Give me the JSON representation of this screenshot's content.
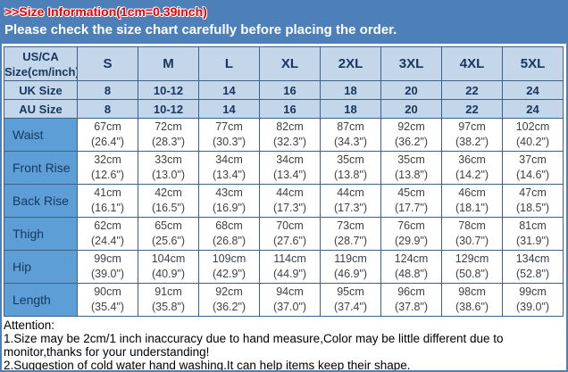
{
  "colors": {
    "banner_blue": "#4d80b9",
    "header_light_blue": "#c3d6ea",
    "row_label_blue": "#5e9ed6",
    "border_blue": "#3e6287",
    "title_red": "#e90000",
    "navy_text": "#17365d",
    "cell_text": "#404040"
  },
  "banner": {
    "info": ">>Size Information(1cm=0.39inch)",
    "notice": "Please check the size chart carefully before placing the order."
  },
  "table": {
    "corner": {
      "line1": "US/CA",
      "line2": "Size(cm/inch)"
    },
    "size_columns": [
      "S",
      "M",
      "L",
      "XL",
      "2XL",
      "3XL",
      "4XL",
      "5XL"
    ],
    "uk_row": {
      "label": "UK Size",
      "values": [
        "8",
        "10-12",
        "14",
        "16",
        "18",
        "20",
        "22",
        "24"
      ]
    },
    "au_row": {
      "label": "AU Size",
      "values": [
        "8",
        "10-12",
        "14",
        "16",
        "18",
        "20",
        "22",
        "24"
      ]
    },
    "body_rows": [
      {
        "label": "Waist",
        "values": [
          {
            "cm": "67cm",
            "inch": "(26.4\")"
          },
          {
            "cm": "72cm",
            "inch": "(28.3\")"
          },
          {
            "cm": "77cm",
            "inch": "(30.3\")"
          },
          {
            "cm": "82cm",
            "inch": "(32.3\")"
          },
          {
            "cm": "87cm",
            "inch": "(34.3\")"
          },
          {
            "cm": "92cm",
            "inch": "(36.2\")"
          },
          {
            "cm": "97cm",
            "inch": "(38.2\")"
          },
          {
            "cm": "102cm",
            "inch": "(40.2\")"
          }
        ]
      },
      {
        "label": "Front Rise",
        "values": [
          {
            "cm": "32cm",
            "inch": "(12.6\")"
          },
          {
            "cm": "33cm",
            "inch": "(13.0\")"
          },
          {
            "cm": "34cm",
            "inch": "(13.4\")"
          },
          {
            "cm": "34cm",
            "inch": "(13.4\")"
          },
          {
            "cm": "35cm",
            "inch": "(13.8\")"
          },
          {
            "cm": "35cm",
            "inch": "(13.8\")"
          },
          {
            "cm": "36cm",
            "inch": "(14.2\")"
          },
          {
            "cm": "37cm",
            "inch": "(14.6\")"
          }
        ]
      },
      {
        "label": "Back Rise",
        "values": [
          {
            "cm": "41cm",
            "inch": "(16.1\")"
          },
          {
            "cm": "42cm",
            "inch": "(16.5\")"
          },
          {
            "cm": "43cm",
            "inch": "(16.9\")"
          },
          {
            "cm": "44cm",
            "inch": "(17.3\")"
          },
          {
            "cm": "44cm",
            "inch": "(17.3\")"
          },
          {
            "cm": "45cm",
            "inch": "(17.7\")"
          },
          {
            "cm": "46cm",
            "inch": "(18.1\")"
          },
          {
            "cm": "47cm",
            "inch": "(18.5\")"
          }
        ]
      },
      {
        "label": "Thigh",
        "values": [
          {
            "cm": "62cm",
            "inch": "(24.4\")"
          },
          {
            "cm": "65cm",
            "inch": "(25.6\")"
          },
          {
            "cm": "68cm",
            "inch": "(26.8\")"
          },
          {
            "cm": "70cm",
            "inch": "(27.6\")"
          },
          {
            "cm": "73cm",
            "inch": "(28.7\")"
          },
          {
            "cm": "76cm",
            "inch": "(29.9\")"
          },
          {
            "cm": "78cm",
            "inch": "(30.7\")"
          },
          {
            "cm": "81cm",
            "inch": "(31.9\")"
          }
        ]
      },
      {
        "label": "Hip",
        "values": [
          {
            "cm": "99cm",
            "inch": "(39.0\")"
          },
          {
            "cm": "104cm",
            "inch": "(40.9\")"
          },
          {
            "cm": "109cm",
            "inch": "(42.9\")"
          },
          {
            "cm": "114cm",
            "inch": "(44.9\")"
          },
          {
            "cm": "119cm",
            "inch": "(46.9\")"
          },
          {
            "cm": "124cm",
            "inch": "(48.8\")"
          },
          {
            "cm": "129cm",
            "inch": "(50.8\")"
          },
          {
            "cm": "134cm",
            "inch": "(52.8\")"
          }
        ]
      },
      {
        "label": "Length",
        "values": [
          {
            "cm": "90cm",
            "inch": "(35.4\")"
          },
          {
            "cm": "91cm",
            "inch": "(35.8\")"
          },
          {
            "cm": "92cm",
            "inch": "(36.2\")"
          },
          {
            "cm": "94cm",
            "inch": "(37.0\")"
          },
          {
            "cm": "95cm",
            "inch": "(37.4\")"
          },
          {
            "cm": "96cm",
            "inch": "(37.8\")"
          },
          {
            "cm": "98cm",
            "inch": "(38.6\")"
          },
          {
            "cm": "99cm",
            "inch": "(39.0\")"
          }
        ]
      }
    ]
  },
  "footer": {
    "attention": "Attention:",
    "note1": "1.Size may be 2cm/1 inch inaccuracy due to hand measure,Color may be little different due to monitor,thanks for your understanding!",
    "note2": "2.Suggestion of cold water hand washing.It can help items keep their shape."
  }
}
